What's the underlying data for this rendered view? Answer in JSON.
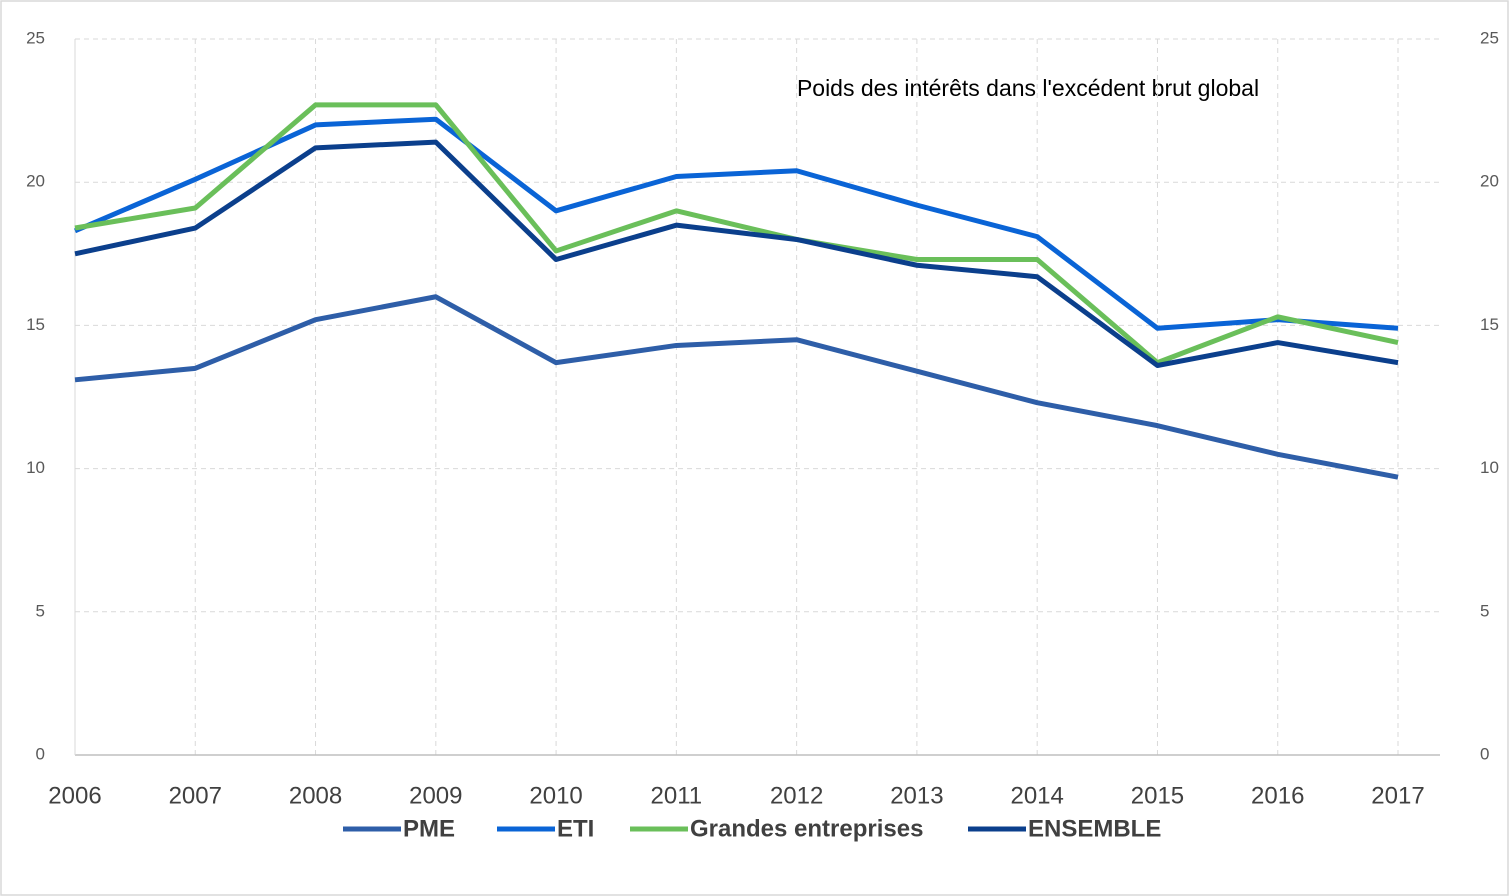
{
  "chart_data": {
    "type": "line",
    "title": "Poids des intérêts dans l'excédent brut global",
    "categories": [
      "2006",
      "2007",
      "2008",
      "2009",
      "2010",
      "2011",
      "2012",
      "2013",
      "2014",
      "2015",
      "2016",
      "2017"
    ],
    "series": [
      {
        "name": "PME",
        "color": "#2e5ea8",
        "values": [
          13.1,
          13.5,
          15.2,
          16.0,
          13.7,
          14.3,
          14.5,
          13.4,
          12.3,
          11.5,
          10.5,
          9.7
        ]
      },
      {
        "name": "ETI",
        "color": "#0a64d6",
        "values": [
          18.3,
          20.1,
          22.0,
          22.2,
          19.0,
          20.2,
          20.4,
          19.2,
          18.1,
          14.9,
          15.2,
          14.9
        ]
      },
      {
        "name": "Grandes entreprises",
        "color": "#6abf5a",
        "values": [
          18.4,
          19.1,
          22.7,
          22.7,
          17.6,
          19.0,
          18.0,
          17.3,
          17.3,
          13.7,
          15.3,
          14.4
        ]
      },
      {
        "name": "ENSEMBLE",
        "color": "#0b3f8c",
        "values": [
          17.5,
          18.4,
          21.2,
          21.4,
          17.3,
          18.5,
          18.0,
          17.1,
          16.7,
          13.6,
          14.4,
          13.7
        ]
      }
    ],
    "ylim": [
      0,
      25
    ],
    "yticks": [
      0,
      5,
      10,
      15,
      20,
      25
    ],
    "y2lim": [
      0,
      25
    ],
    "y2ticks": [
      0,
      5,
      10,
      15,
      20,
      25
    ],
    "grid": true,
    "legend": "bottom"
  }
}
